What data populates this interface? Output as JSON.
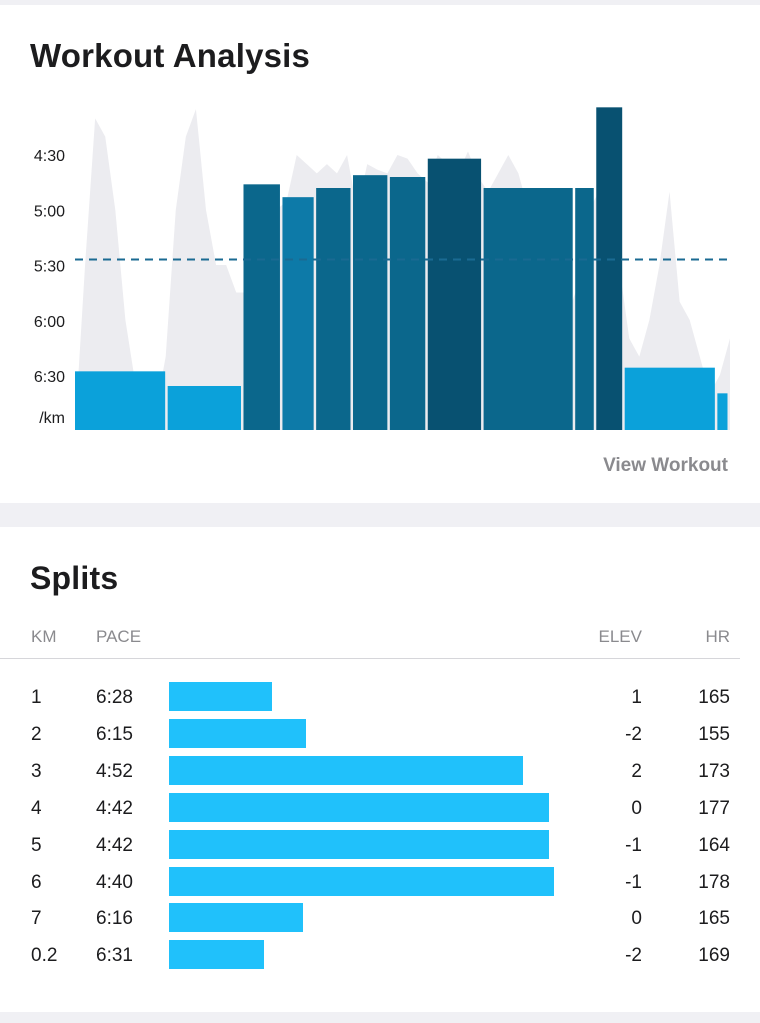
{
  "analysis": {
    "title": "Workout Analysis",
    "view_link": "View Workout",
    "chart_data": {
      "type": "bar",
      "y_unit": "/km",
      "y_ticks": [
        "4:30",
        "5:00",
        "5:30",
        "6:00",
        "6:30"
      ],
      "y_range_seconds": [
        240,
        420
      ],
      "average_pace_seconds": 327,
      "segments": [
        {
          "duration": 88,
          "pace": 388,
          "color": "#069fd9"
        },
        {
          "duration": 72,
          "pace": 396,
          "color": "#069fd9"
        },
        {
          "duration": 37,
          "pace": 286,
          "color": "#06648a"
        },
        {
          "duration": 32,
          "pace": 293,
          "color": "#0877a6"
        },
        {
          "duration": 35,
          "pace": 288,
          "color": "#06648a"
        },
        {
          "duration": 35,
          "pace": 281,
          "color": "#06648a"
        },
        {
          "duration": 36,
          "pace": 282,
          "color": "#06648a"
        },
        {
          "duration": 53,
          "pace": 272,
          "color": "#034e6e"
        },
        {
          "duration": 87,
          "pace": 288,
          "color": "#06648a"
        },
        {
          "duration": 20,
          "pace": 288,
          "color": "#06648a"
        },
        {
          "duration": 27,
          "pace": 244,
          "color": "#034e6e"
        },
        {
          "duration": 88,
          "pace": 386,
          "color": "#069fd9"
        },
        {
          "duration": 12,
          "pace": 400,
          "color": "#069fd9"
        }
      ],
      "pace_profile": [
        420,
        330,
        250,
        260,
        300,
        360,
        395,
        400,
        410,
        380,
        300,
        260,
        245,
        300,
        330,
        330,
        345,
        345,
        340,
        320,
        300,
        295,
        270,
        275,
        280,
        275,
        280,
        270,
        300,
        275,
        278,
        280,
        270,
        272,
        280,
        285,
        270,
        275,
        280,
        268,
        282,
        290,
        280,
        270,
        280,
        300,
        290,
        320,
        335,
        355,
        340,
        300,
        290,
        300,
        330,
        370,
        380,
        360,
        330,
        290,
        350,
        360,
        380,
        400,
        390,
        370
      ]
    }
  },
  "splits": {
    "title": "Splits",
    "columns": [
      "KM",
      "PACE",
      "ELEV",
      "HR"
    ],
    "rows": [
      {
        "km": "1",
        "pace": "6:28",
        "elev": "1",
        "hr": "165"
      },
      {
        "km": "2",
        "pace": "6:15",
        "elev": "-2",
        "hr": "155"
      },
      {
        "km": "3",
        "pace": "4:52",
        "elev": "2",
        "hr": "173"
      },
      {
        "km": "4",
        "pace": "4:42",
        "elev": "0",
        "hr": "177"
      },
      {
        "km": "5",
        "pace": "4:42",
        "elev": "-1",
        "hr": "164"
      },
      {
        "km": "6",
        "pace": "4:40",
        "elev": "-1",
        "hr": "178"
      },
      {
        "km": "7",
        "pace": "6:16",
        "elev": "0",
        "hr": "165"
      },
      {
        "km": "0.2",
        "pace": "6:31",
        "elev": "-2",
        "hr": "169"
      }
    ]
  }
}
